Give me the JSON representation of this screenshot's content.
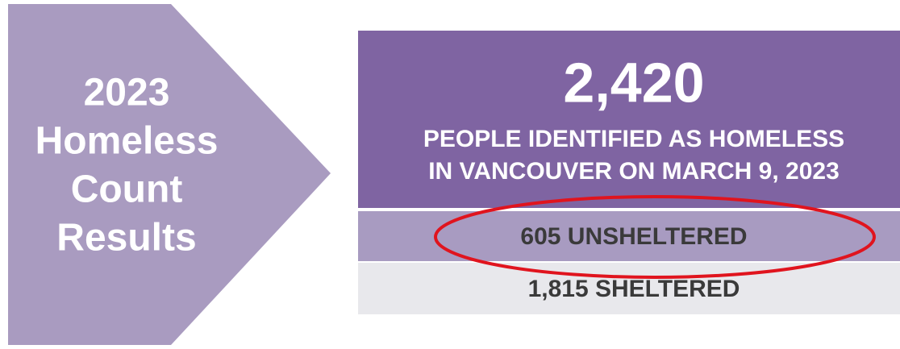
{
  "arrow": {
    "lines": [
      "2023",
      "Homeless",
      "Count",
      "Results"
    ]
  },
  "panel": {
    "total": "2,420",
    "caption_lines": [
      "PEOPLE IDENTIFIED AS HOMELESS",
      "IN VANCOUVER ON MARCH 9, 2023"
    ],
    "unsheltered": "605 UNSHELTERED",
    "sheltered": "1,815 SHELTERED"
  }
}
